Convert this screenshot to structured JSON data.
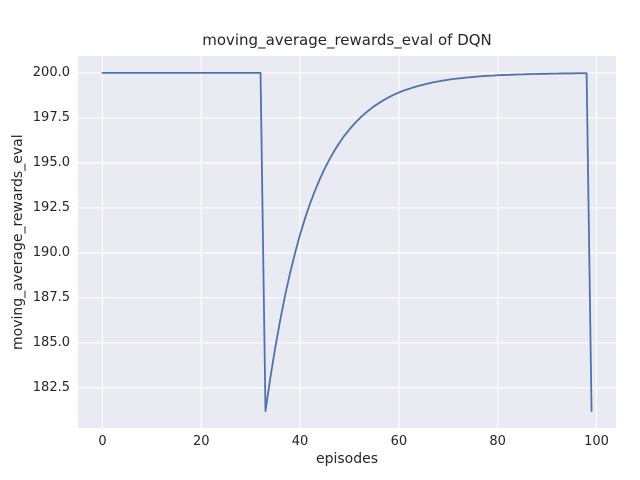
{
  "chart_data": {
    "type": "line",
    "title": "moving_average_rewards_eval of DQN",
    "xlabel": "episodes",
    "ylabel": "moving_average_rewards_eval",
    "legend": null,
    "grid": true,
    "line_color": "#4c72b0",
    "plot_bg": "#eaeaf2",
    "grid_color": "#ffffff",
    "xlim": [
      -4.95,
      103.95
    ],
    "ylim": [
      180.26,
      200.94
    ],
    "xticks": [
      0,
      20,
      40,
      60,
      80,
      100
    ],
    "xtick_labels": [
      "0",
      "20",
      "40",
      "60",
      "80",
      "100"
    ],
    "yticks": [
      182.5,
      185.0,
      187.5,
      190.0,
      192.5,
      195.0,
      197.5,
      200.0
    ],
    "ytick_labels": [
      "182.5",
      "185.0",
      "187.5",
      "190.0",
      "192.5",
      "195.0",
      "197.5",
      "200.0"
    ],
    "x": [
      0,
      1,
      2,
      3,
      4,
      5,
      6,
      7,
      8,
      9,
      10,
      11,
      12,
      13,
      14,
      15,
      16,
      17,
      18,
      19,
      20,
      21,
      22,
      23,
      24,
      25,
      26,
      27,
      28,
      29,
      30,
      31,
      32,
      33,
      34,
      35,
      36,
      37,
      38,
      39,
      40,
      41,
      42,
      43,
      44,
      45,
      46,
      47,
      48,
      49,
      50,
      51,
      52,
      53,
      54,
      55,
      56,
      57,
      58,
      59,
      60,
      61,
      62,
      63,
      64,
      65,
      66,
      67,
      68,
      69,
      70,
      71,
      72,
      73,
      74,
      75,
      76,
      77,
      78,
      79,
      80,
      81,
      82,
      83,
      84,
      85,
      86,
      87,
      88,
      89,
      90,
      91,
      92,
      93,
      94,
      95,
      96,
      97,
      98,
      99
    ],
    "y": [
      200,
      200,
      200,
      200,
      200,
      200,
      200,
      200,
      200,
      200,
      200,
      200,
      200,
      200,
      200,
      200,
      200,
      200,
      200,
      200,
      200,
      200,
      200,
      200,
      200,
      200,
      200,
      200,
      200,
      200,
      200,
      200,
      200,
      181.2,
      183.08,
      184.77,
      186.29,
      187.67,
      188.9,
      190.01,
      191.01,
      191.91,
      192.72,
      193.44,
      194.1,
      194.69,
      195.22,
      195.7,
      196.13,
      196.52,
      196.86,
      197.18,
      197.46,
      197.71,
      197.94,
      198.15,
      198.33,
      198.5,
      198.65,
      198.79,
      198.91,
      199.02,
      199.11,
      199.2,
      199.28,
      199.35,
      199.42,
      199.48,
      199.53,
      199.58,
      199.62,
      199.66,
      199.69,
      199.72,
      199.75,
      199.77,
      199.8,
      199.82,
      199.84,
      199.85,
      199.87,
      199.88,
      199.89,
      199.9,
      199.91,
      199.92,
      199.93,
      199.94,
      199.94,
      199.95,
      199.95,
      199.96,
      199.96,
      199.97,
      199.97,
      199.97,
      199.98,
      199.98,
      199.98,
      181.2
    ]
  }
}
